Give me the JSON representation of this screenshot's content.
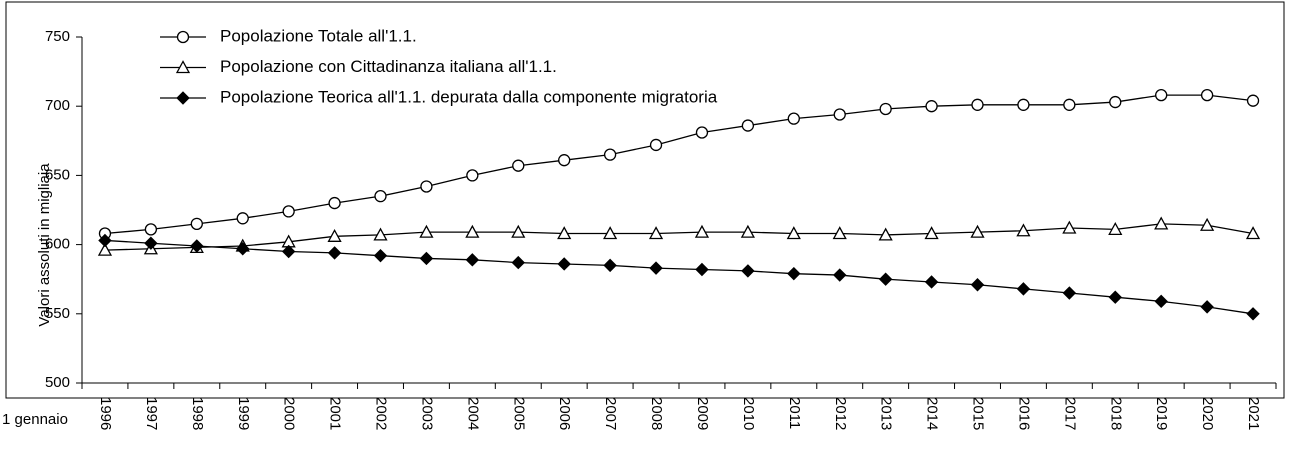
{
  "chart_data": {
    "type": "line",
    "y_label": "Valori assoluti in migliaia",
    "x_label": "1 gennaio",
    "categories": [
      "1996",
      "1997",
      "1998",
      "1999",
      "2000",
      "2001",
      "2002",
      "2003",
      "2004",
      "2005",
      "2006",
      "2007",
      "2008",
      "2009",
      "2010",
      "2011",
      "2012",
      "2013",
      "2014",
      "2015",
      "2016",
      "2017",
      "2018",
      "2019",
      "2020",
      "2021"
    ],
    "series": [
      {
        "name": "Popolazione Totale all'1.1.",
        "color": "#000000",
        "marker": "circle",
        "values": [
          608,
          611,
          615,
          619,
          624,
          630,
          635,
          642,
          650,
          657,
          661,
          665,
          672,
          681,
          686,
          691,
          694,
          698,
          700,
          701,
          701,
          701,
          703,
          708,
          708,
          704
        ]
      },
      {
        "name": "Popolazione con Cittadinanza italiana all'1.1.",
        "color": "#000000",
        "marker": "triangle",
        "values": [
          596,
          597,
          598,
          599,
          602,
          606,
          607,
          609,
          609,
          609,
          608,
          608,
          608,
          609,
          609,
          608,
          608,
          607,
          608,
          609,
          610,
          612,
          611,
          615,
          614,
          608
        ]
      },
      {
        "name": "Popolazione Teorica all'1.1. depurata dalla componente migratoria",
        "color": "#000000",
        "marker": "diamond",
        "values": [
          603,
          601,
          599,
          597,
          595,
          594,
          592,
          590,
          589,
          587,
          586,
          585,
          583,
          582,
          581,
          579,
          578,
          575,
          573,
          571,
          568,
          565,
          562,
          559,
          555,
          550
        ]
      }
    ],
    "ylim": [
      500,
      750
    ],
    "yticks": [
      500,
      550,
      600,
      650,
      700,
      750
    ],
    "grid": false,
    "legend": "upper left"
  }
}
